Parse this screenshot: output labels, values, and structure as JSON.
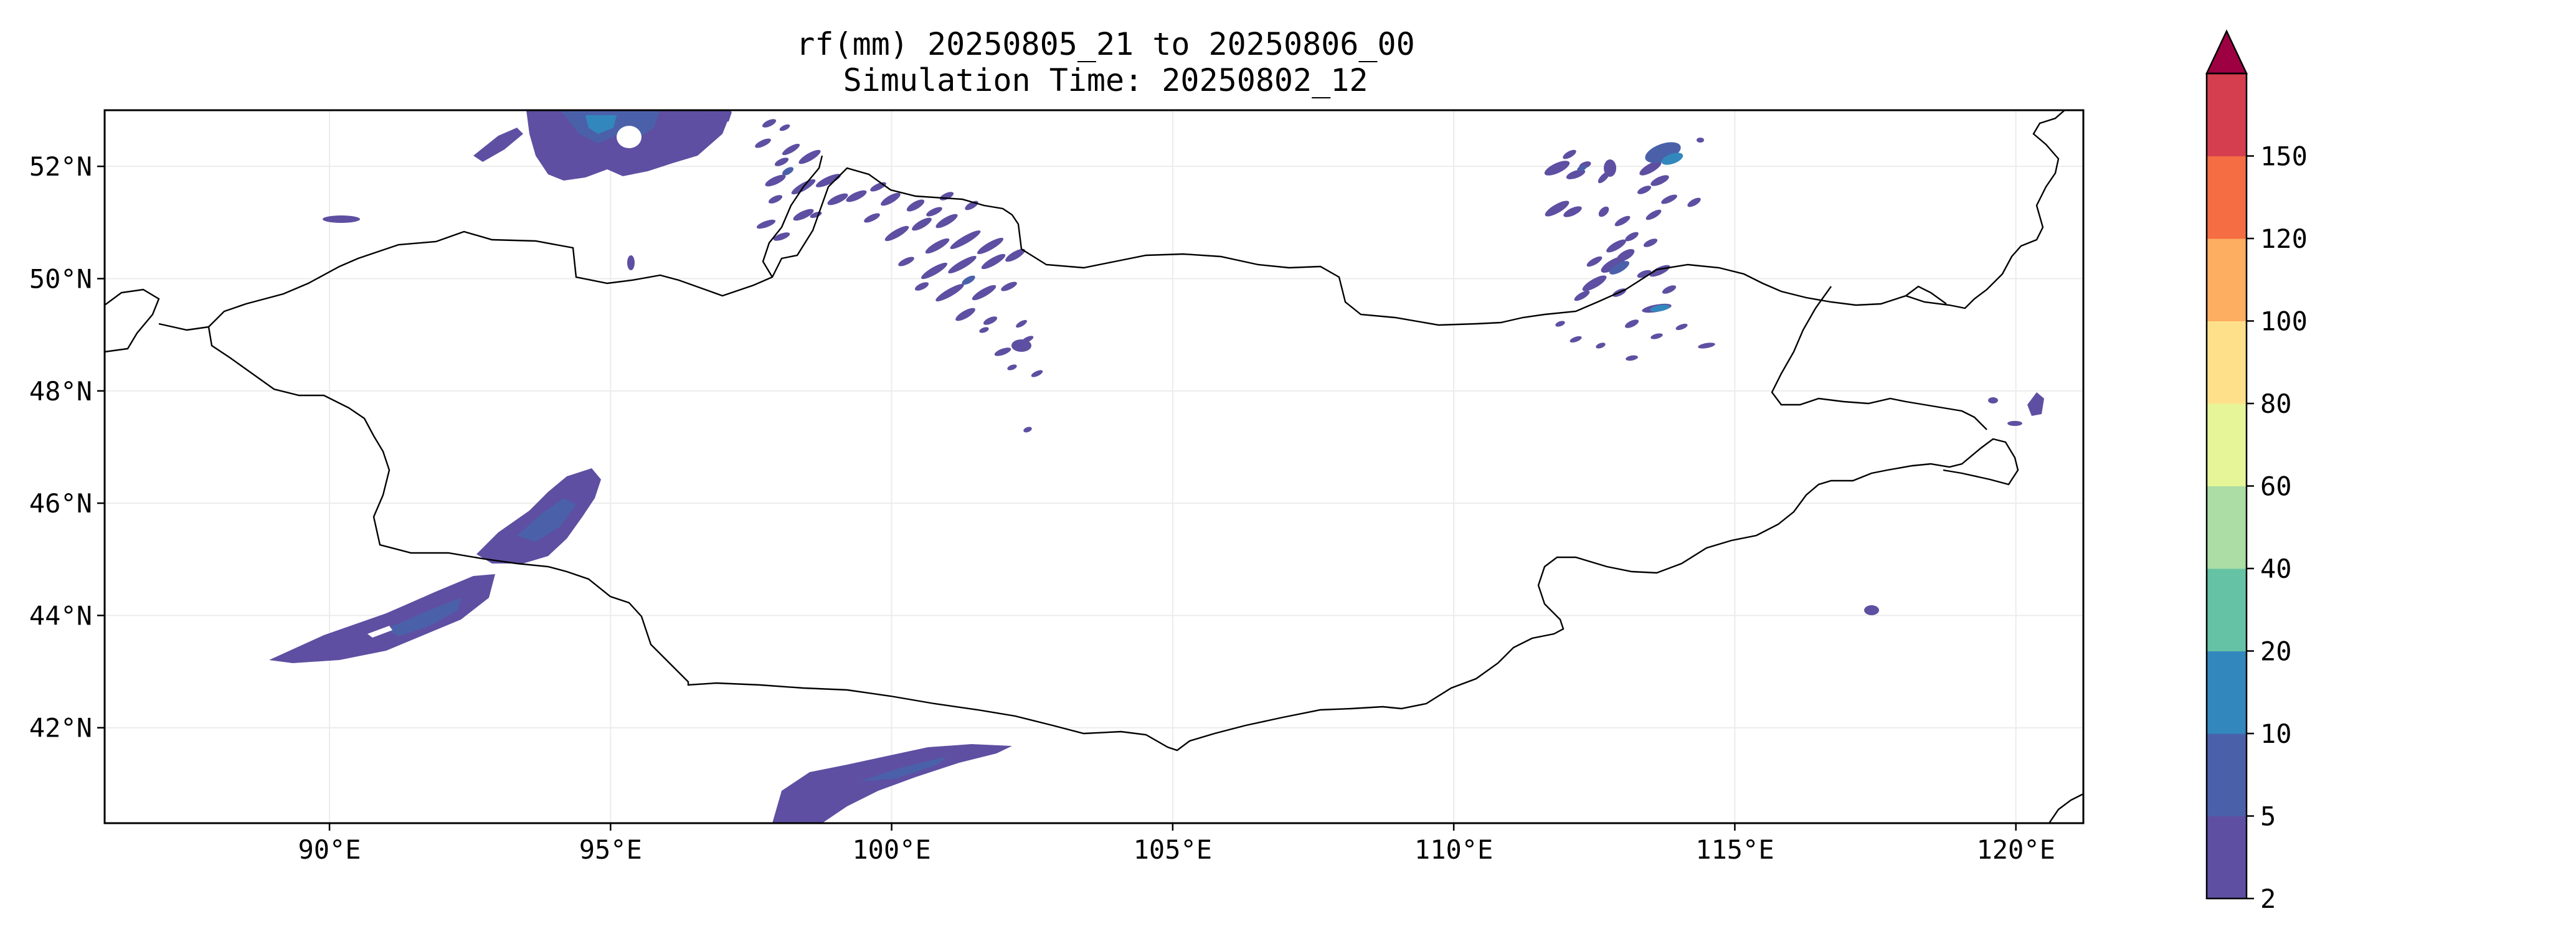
{
  "title": {
    "line1": "rf(mm) 20250805_21 to 20250806_00",
    "line2": "Simulation Time: 20250802_12"
  },
  "map": {
    "lon_range": [
      86,
      121.2
    ],
    "lat_range": [
      40.3,
      53
    ],
    "lon_ticks": [
      {
        "value": 90,
        "label": "90°E"
      },
      {
        "value": 95,
        "label": "95°E"
      },
      {
        "value": 100,
        "label": "100°E"
      },
      {
        "value": 105,
        "label": "105°E"
      },
      {
        "value": 110,
        "label": "110°E"
      },
      {
        "value": 115,
        "label": "115°E"
      },
      {
        "value": 120,
        "label": "120°E"
      }
    ],
    "lat_ticks": [
      {
        "value": 42,
        "label": "42°N"
      },
      {
        "value": 44,
        "label": "44°N"
      },
      {
        "value": 46,
        "label": "46°N"
      },
      {
        "value": 48,
        "label": "48°N"
      },
      {
        "value": 50,
        "label": "50°N"
      },
      {
        "value": 52,
        "label": "52°N"
      }
    ],
    "grid": true,
    "border_color": "#000000"
  },
  "colorbar": {
    "levels": [
      2,
      5,
      10,
      20,
      40,
      60,
      80,
      100,
      120,
      150
    ],
    "labels": [
      "2",
      "5",
      "10",
      "20",
      "40",
      "60",
      "80",
      "100",
      "120",
      "150"
    ],
    "colors": [
      "#5e4fa2",
      "#4a61aa",
      "#3288bd",
      "#66c2a5",
      "#abdda4",
      "#e6f598",
      "#fee08b",
      "#fdae61",
      "#f46d43",
      "#d53e4f"
    ],
    "extend_max_color": "#9e0142"
  },
  "rain_colors": {
    "low": "#5e4fa2",
    "mid": "#4a61aa",
    "high": "#3288bd"
  }
}
